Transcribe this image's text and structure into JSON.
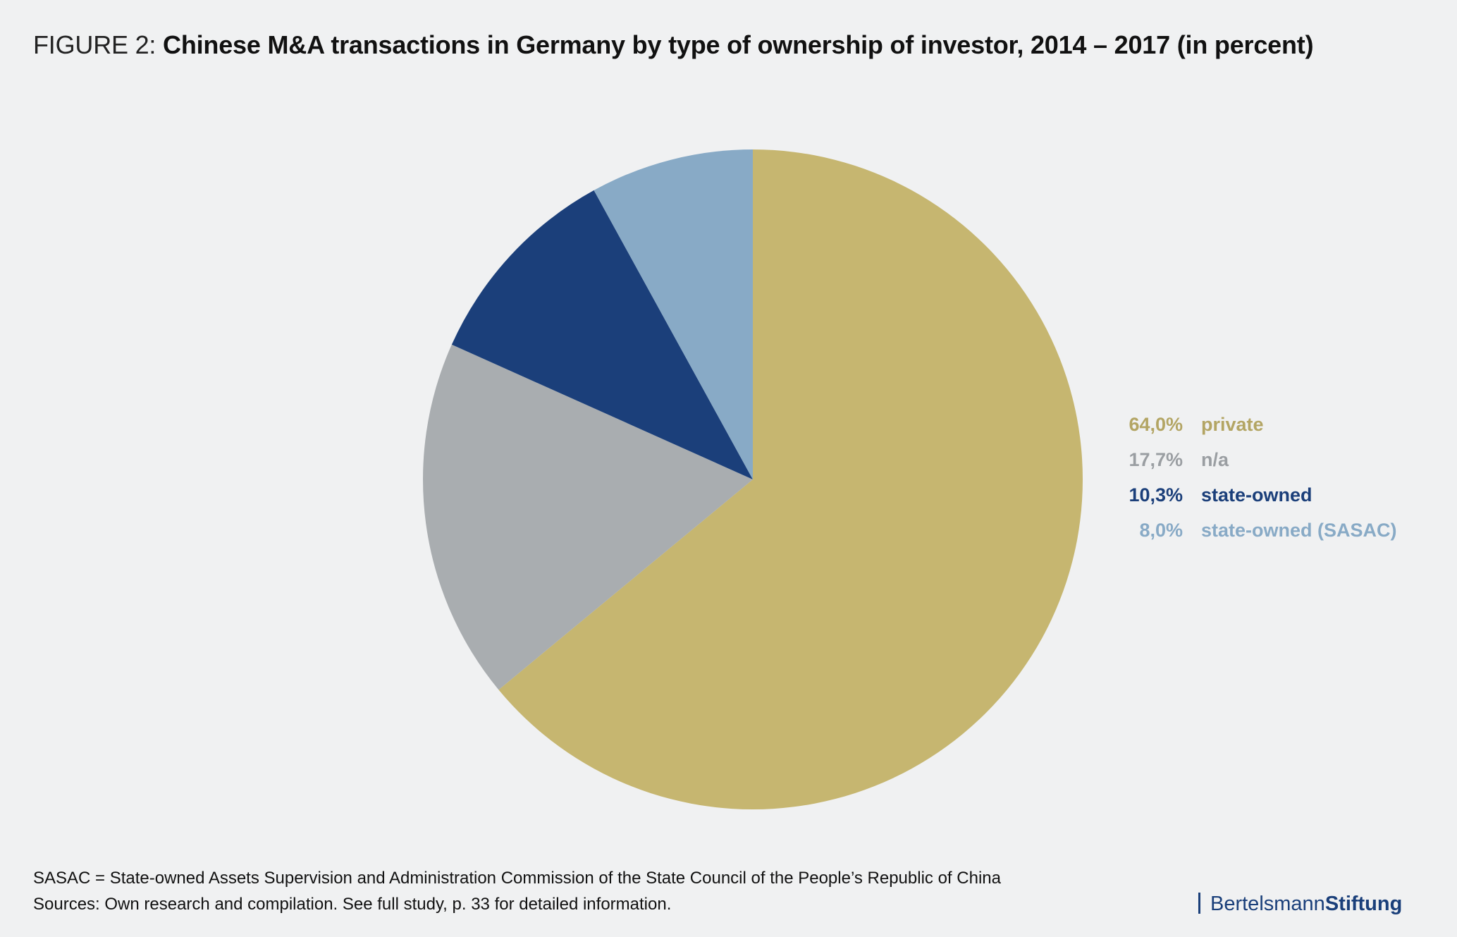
{
  "title": {
    "prefix": "FIGURE 2: ",
    "main": "Chinese M&A transactions in Germany by type of ownership of investor, 2014 – 2017 (in percent)"
  },
  "chart_data": {
    "type": "pie",
    "title": "Chinese M&A transactions in Germany by type of ownership of investor, 2014 – 2017 (in percent)",
    "start": "12 o'clock",
    "direction": "clockwise",
    "legend_position": "right",
    "slices": [
      {
        "label": "private",
        "value": 64.0,
        "display": "64,0%",
        "color": "#c6b670"
      },
      {
        "label": "n/a",
        "value": 17.7,
        "display": "17,7%",
        "color": "#a9adb0"
      },
      {
        "label": "state-owned",
        "value": 10.3,
        "display": "10,3%",
        "color": "#1b3f7a"
      },
      {
        "label": "state-owned (SASAC)",
        "value": 8.0,
        "display": "8,0%",
        "color": "#88aac6"
      }
    ]
  },
  "legend_colors": {
    "private": "#b3a564",
    "n/a": "#9a9ea2",
    "state-owned": "#1b3f7a",
    "state-owned (SASAC)": "#88aac6"
  },
  "footnotes": {
    "note": "SASAC = State-owned Assets Supervision and Administration Commission of the State Council of the People’s Republic of China",
    "source": "Sources: Own research and compilation. See full study, p. 33 for detailed information."
  },
  "logo": {
    "text_regular": "Bertelsmann",
    "text_bold": "Stiftung"
  }
}
